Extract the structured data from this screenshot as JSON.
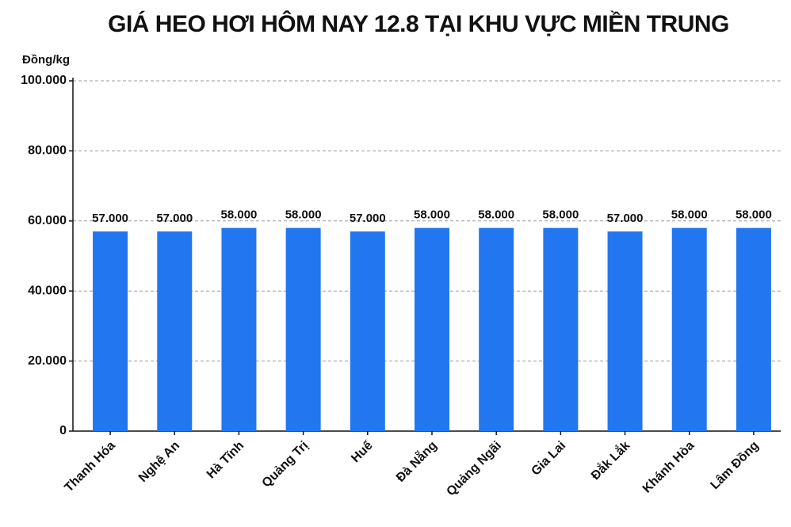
{
  "chart_data": {
    "type": "bar",
    "title": "GIÁ HEO HƠI HÔM NAY 12.8 TẠI KHU VỰC MIỀN TRUNG",
    "y_label": "Đồng/kg",
    "categories": [
      "Thanh Hóa",
      "Nghệ An",
      "Hà Tĩnh",
      "Quảng Trị",
      "Huế",
      "Đà Nẵng",
      "Quảng Ngãi",
      "Gia Lai",
      "Đắk Lắk",
      "Khánh Hòa",
      "Lâm Đồng"
    ],
    "values": [
      57000,
      57000,
      58000,
      58000,
      57000,
      58000,
      58000,
      58000,
      57000,
      58000,
      58000
    ],
    "value_labels": [
      "57.000",
      "57.000",
      "58.000",
      "58.000",
      "57.000",
      "58.000",
      "58.000",
      "58.000",
      "57.000",
      "58.000",
      "58.000"
    ],
    "color": "#2277f0",
    "ylim": [
      0,
      100000
    ],
    "yticks": [
      0,
      {
        "value": 20000,
        "label": "20.000"
      },
      {
        "value": 40000,
        "label": "40.000"
      },
      {
        "value": 60000,
        "label": "60.000"
      },
      {
        "value": 80000,
        "label": "80.000"
      },
      {
        "value": 100000,
        "label": "100.000"
      }
    ],
    "grid": true
  }
}
